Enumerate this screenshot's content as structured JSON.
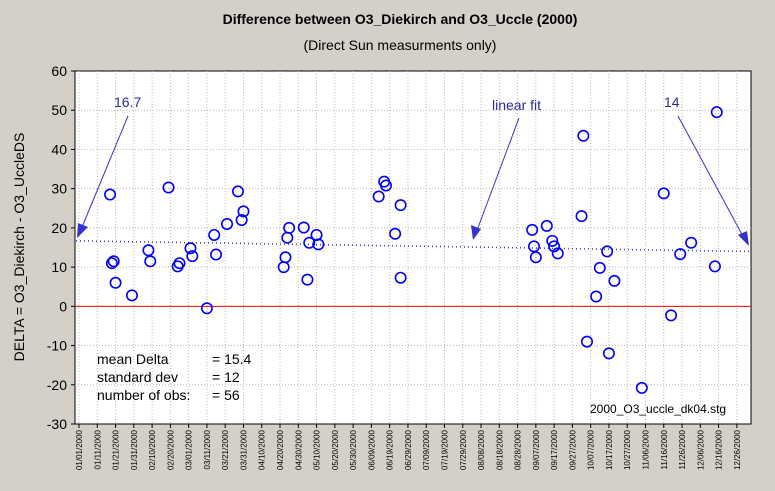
{
  "chart_data": {
    "type": "scatter",
    "title": "Difference between O3_Diekirch and O3_Uccle (2000)",
    "subtitle": "(Direct Sun measurments only)",
    "xlabel": "",
    "ylabel": "DELTA = O3_Diekirch - O3_UccleDS",
    "ylim": [
      -30,
      60
    ],
    "y_ticks": [
      -30,
      -20,
      -10,
      0,
      10,
      20,
      30,
      40,
      50,
      60
    ],
    "x_ticks": [
      "01/01/2000",
      "01/11/2000",
      "01/21/2000",
      "01/31/2000",
      "02/10/2000",
      "02/20/2000",
      "03/01/2000",
      "03/11/2000",
      "03/21/2000",
      "03/31/2000",
      "04/10/2000",
      "04/20/2000",
      "04/30/2000",
      "05/10/2000",
      "05/20/2000",
      "05/30/2000",
      "06/09/2000",
      "06/19/2000",
      "06/29/2000",
      "07/09/2000",
      "07/19/2000",
      "07/29/2000",
      "08/08/2000",
      "08/18/2000",
      "08/28/2000",
      "09/07/2000",
      "09/17/2000",
      "09/27/2000",
      "10/07/2000",
      "10/17/2000",
      "10/27/2000",
      "11/06/2000",
      "11/16/2000",
      "11/26/2000",
      "12/06/2000",
      "12/16/2000",
      "12/26/2000"
    ],
    "grid": true,
    "marker_color": "#0000ff",
    "zero_line_color": "#ff0000",
    "fit_color": "#3333cc",
    "points": [
      {
        "x": "2000-01-18",
        "y": 28.5
      },
      {
        "x": "2000-01-19",
        "y": 11.0
      },
      {
        "x": "2000-01-20",
        "y": 11.5
      },
      {
        "x": "2000-01-21",
        "y": 6.0
      },
      {
        "x": "2000-01-30",
        "y": 2.8
      },
      {
        "x": "2000-02-08",
        "y": 14.3
      },
      {
        "x": "2000-02-09",
        "y": 11.5
      },
      {
        "x": "2000-02-19",
        "y": 30.3
      },
      {
        "x": "2000-02-24",
        "y": 10.2
      },
      {
        "x": "2000-02-25",
        "y": 11.0
      },
      {
        "x": "2000-03-02",
        "y": 14.8
      },
      {
        "x": "2000-03-03",
        "y": 12.8
      },
      {
        "x": "2000-03-11",
        "y": -0.5
      },
      {
        "x": "2000-03-15",
        "y": 18.2
      },
      {
        "x": "2000-03-16",
        "y": 13.2
      },
      {
        "x": "2000-03-22",
        "y": 21.0
      },
      {
        "x": "2000-03-28",
        "y": 29.3
      },
      {
        "x": "2000-03-30",
        "y": 22.0
      },
      {
        "x": "2000-03-31",
        "y": 24.2
      },
      {
        "x": "2000-04-22",
        "y": 10.0
      },
      {
        "x": "2000-04-23",
        "y": 12.5
      },
      {
        "x": "2000-04-24",
        "y": 17.5
      },
      {
        "x": "2000-04-25",
        "y": 20.0
      },
      {
        "x": "2000-05-03",
        "y": 20.1
      },
      {
        "x": "2000-05-05",
        "y": 6.8
      },
      {
        "x": "2000-05-06",
        "y": 16.2
      },
      {
        "x": "2000-05-10",
        "y": 18.2
      },
      {
        "x": "2000-05-11",
        "y": 15.8
      },
      {
        "x": "2000-06-13",
        "y": 28.0
      },
      {
        "x": "2000-06-16",
        "y": 31.8
      },
      {
        "x": "2000-06-17",
        "y": 30.8
      },
      {
        "x": "2000-06-22",
        "y": 18.5
      },
      {
        "x": "2000-06-25",
        "y": 25.8
      },
      {
        "x": "2000-06-25",
        "y": 7.3
      },
      {
        "x": "2000-09-05",
        "y": 19.5
      },
      {
        "x": "2000-09-06",
        "y": 15.3
      },
      {
        "x": "2000-09-07",
        "y": 12.5
      },
      {
        "x": "2000-09-13",
        "y": 20.5
      },
      {
        "x": "2000-09-16",
        "y": 16.7
      },
      {
        "x": "2000-09-17",
        "y": 15.3
      },
      {
        "x": "2000-09-19",
        "y": 13.5
      },
      {
        "x": "2000-10-02",
        "y": 23.0
      },
      {
        "x": "2000-10-03",
        "y": 43.5
      },
      {
        "x": "2000-10-05",
        "y": -9.0
      },
      {
        "x": "2000-10-10",
        "y": 2.5
      },
      {
        "x": "2000-10-12",
        "y": 9.8
      },
      {
        "x": "2000-10-16",
        "y": 14.0
      },
      {
        "x": "2000-10-17",
        "y": -12.0
      },
      {
        "x": "2000-10-20",
        "y": 6.5
      },
      {
        "x": "2000-11-04",
        "y": -20.8
      },
      {
        "x": "2000-11-16",
        "y": 28.8
      },
      {
        "x": "2000-11-20",
        "y": -2.3
      },
      {
        "x": "2000-11-25",
        "y": 13.3
      },
      {
        "x": "2000-12-01",
        "y": 16.2
      },
      {
        "x": "2000-12-14",
        "y": 10.2
      },
      {
        "x": "2000-12-15",
        "y": 49.5
      }
    ],
    "fit": {
      "start": {
        "x": "2000-01-01",
        "y": 16.7
      },
      "end": {
        "x": "2000-12-31",
        "y": 14
      }
    },
    "annotations": {
      "fit_start_label": "16.7",
      "fit_label": "linear fit",
      "fit_end_label": "14"
    },
    "stats": {
      "mean_label": "mean Delta",
      "mean_value": "= 15.4",
      "sd_label": "standard dev",
      "sd_value": "= 12",
      "n_label": "number of obs:",
      "n_value": "= 56"
    },
    "filename": "2000_O3_uccle_dk04.stg"
  }
}
